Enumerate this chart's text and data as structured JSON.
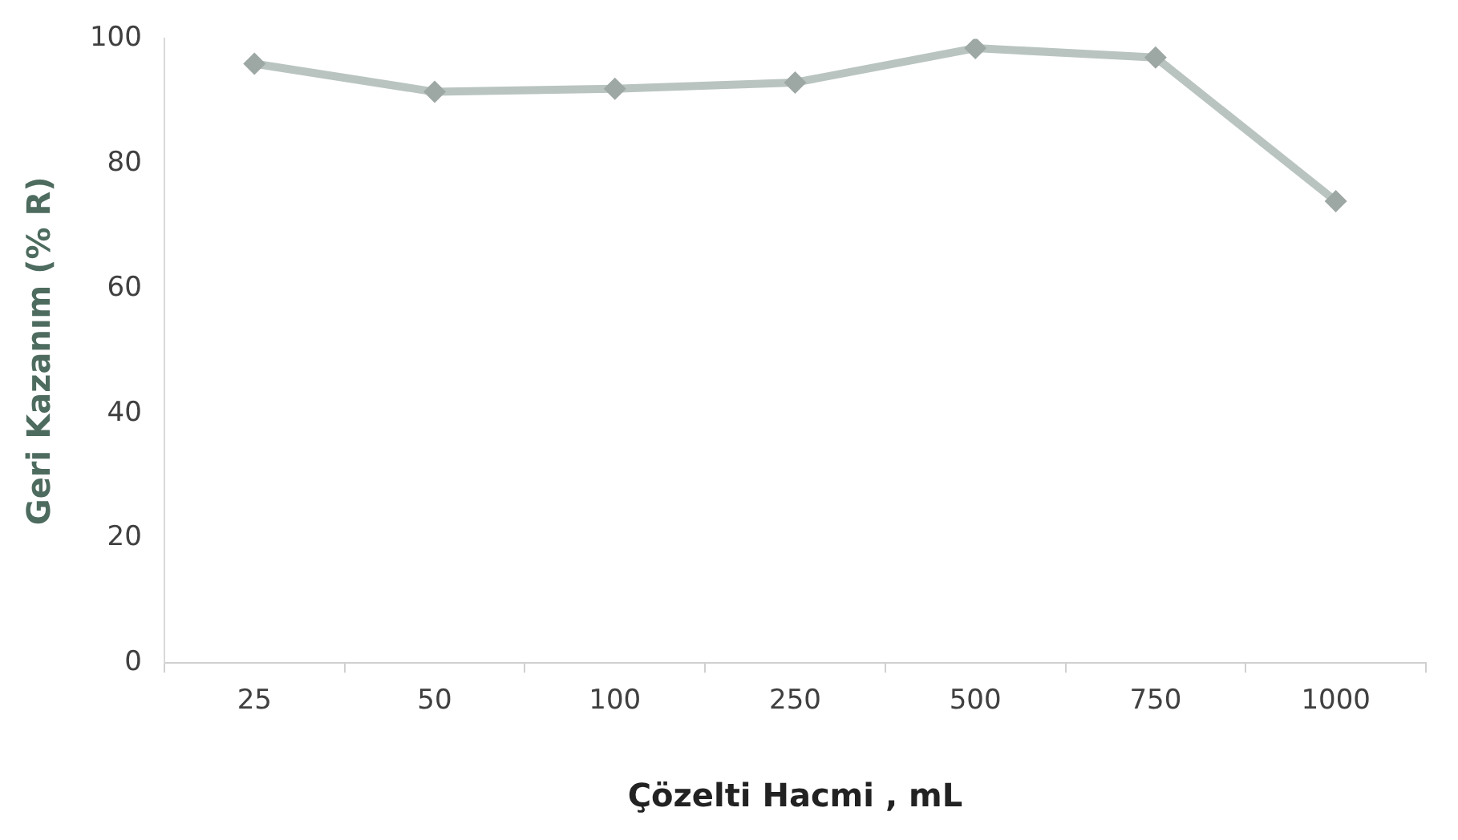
{
  "chart_data": {
    "type": "line",
    "xlabel": "Çözelti Hacmi , mL",
    "ylabel": "Geri Kazanım (% R)",
    "categories": [
      "25",
      "50",
      "100",
      "250",
      "500",
      "750",
      "1000"
    ],
    "series": [
      {
        "color": "#b9c4c0",
        "values": [
          96,
          91.5,
          92,
          93,
          98.5,
          97,
          74
        ]
      }
    ],
    "ylim": [
      0,
      100
    ],
    "yticks": [
      0,
      20,
      40,
      60,
      80,
      100
    ],
    "grid": false,
    "legend": false,
    "marker": "diamond",
    "line_style": "solid"
  }
}
